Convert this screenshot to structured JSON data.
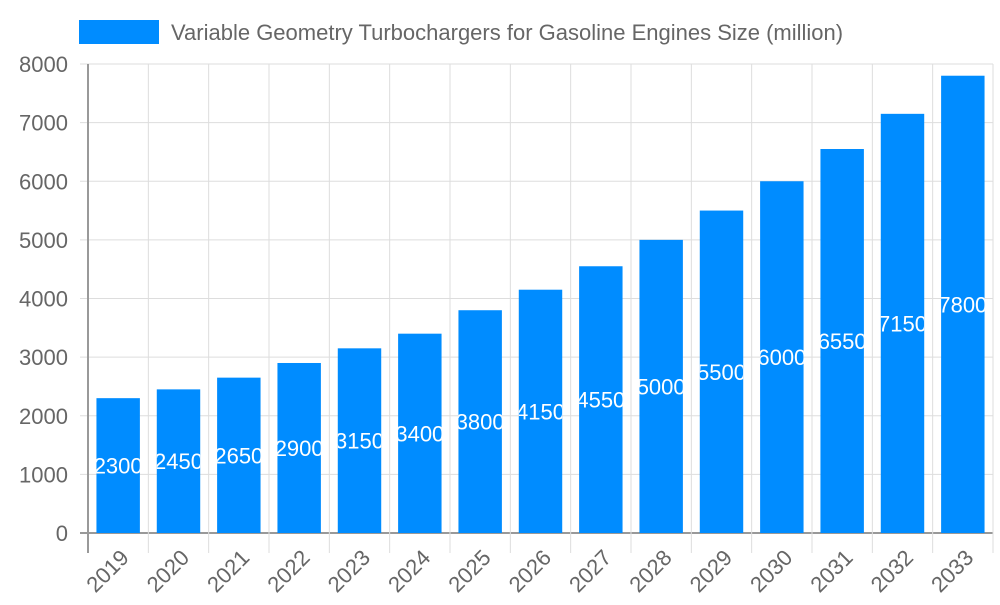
{
  "chart_data": {
    "type": "bar",
    "title": "",
    "xlabel": "",
    "ylabel": "",
    "categories": [
      "2019",
      "2020",
      "2021",
      "2022",
      "2023",
      "2024",
      "2025",
      "2026",
      "2027",
      "2028",
      "2029",
      "2030",
      "2031",
      "2032",
      "2033"
    ],
    "series": [
      {
        "name": "Variable Geometry Turbochargers for Gasoline Engines Size (million)",
        "values": [
          2300,
          2450,
          2650,
          2900,
          3150,
          3400,
          3800,
          4150,
          4550,
          5000,
          5500,
          6000,
          6550,
          7150,
          7800
        ],
        "color": "#008cff"
      }
    ],
    "ylim": [
      0,
      8000
    ],
    "yticks": [
      0,
      1000,
      2000,
      3000,
      4000,
      5000,
      6000,
      7000,
      8000
    ],
    "grid": true,
    "legend": "top-center",
    "data_labels": true
  }
}
